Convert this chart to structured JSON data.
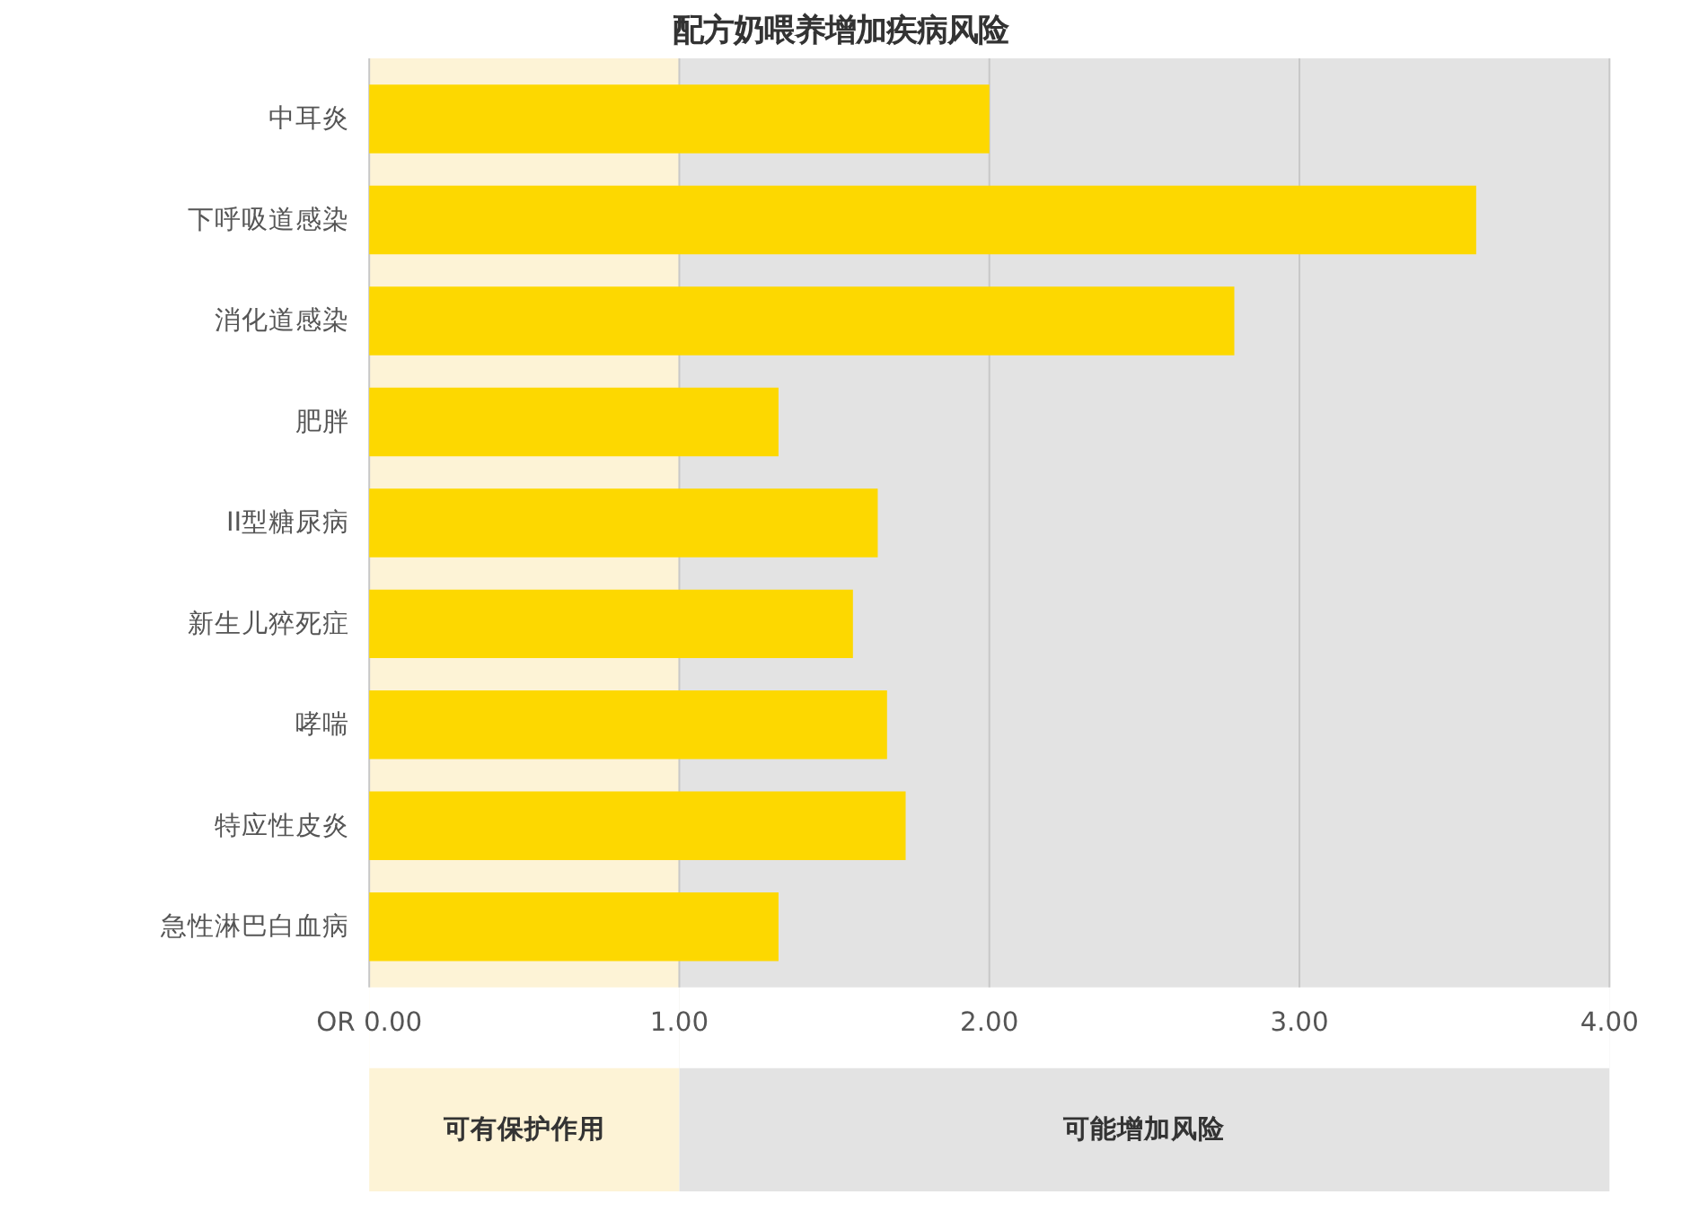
{
  "chart_data": {
    "type": "bar",
    "orientation": "horizontal",
    "title": "配方奶喂养增加疾病风险",
    "categories": [
      "中耳炎",
      "下呼吸道感染",
      "消化道感染",
      "肥胖",
      "II型糖尿病",
      "新生儿猝死症",
      "哮喘",
      "特应性皮炎",
      "急性淋巴白血病"
    ],
    "values": [
      2.0,
      3.57,
      2.79,
      1.32,
      1.64,
      1.56,
      1.67,
      1.73,
      1.32
    ],
    "color": "#fdd800",
    "xlim": [
      0,
      4
    ],
    "xticks": [
      {
        "value": 0,
        "label": "OR 0.00"
      },
      {
        "value": 1,
        "label": "1.00"
      },
      {
        "value": 2,
        "label": "2.00"
      },
      {
        "value": 3,
        "label": "3.00"
      },
      {
        "value": 4,
        "label": "4.00"
      }
    ],
    "grid": "x",
    "bands": [
      {
        "axis": "x",
        "from": 0,
        "to": 1,
        "label": "可有保护作用",
        "color": "#fdf3d6"
      },
      {
        "axis": "x",
        "from": 1,
        "to": 4,
        "label": "可能增加风险",
        "color": "#e3e3e3"
      }
    ]
  }
}
